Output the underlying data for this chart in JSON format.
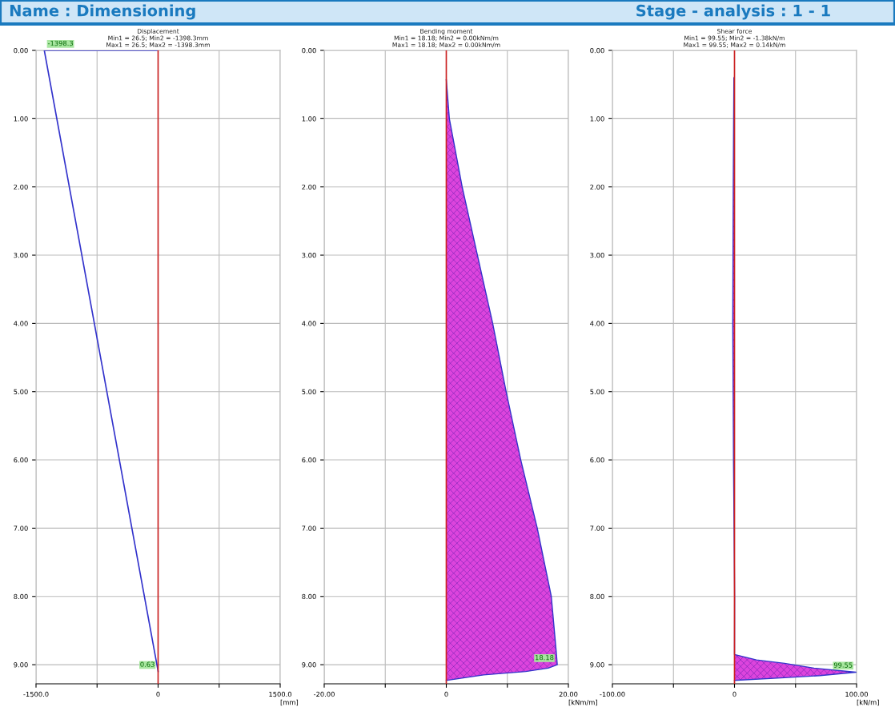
{
  "chart_data": [
    {
      "type": "line",
      "orientation": "horizontal",
      "title": "Displacement",
      "subtitle": "Min1 = 26.5; Min2 = -1398.3mm\nMax1 = 26.5; Max2 = -1398.3mm",
      "xlabel": "[mm]",
      "annotations": [
        "Name : Dimensioning"
      ],
      "series": [
        {
          "color": "#3333cc",
          "x": [
            0,
            0,
            9.1
          ],
          "values": [
            0,
            -1398.3,
            0.63
          ],
          "value_labels": [
            null,
            "-1398.3",
            "0.63"
          ]
        }
      ],
      "ref_lines": [
        {
          "axis": "x",
          "value": 0,
          "color": "#cc2222"
        }
      ],
      "xlim": [
        -1500,
        1500
      ],
      "xticks": [
        {
          "value": -1500,
          "label": "-1500.0"
        },
        {
          "value": -750,
          "label": null
        },
        {
          "value": 0,
          "label": "0"
        },
        {
          "value": 750,
          "label": null
        },
        {
          "value": 1500,
          "label": "1500.0"
        }
      ],
      "ylim": [
        9.28,
        0
      ],
      "yticks": [
        {
          "value": 0,
          "label": "0.00"
        },
        {
          "value": 1,
          "label": "1.00"
        },
        {
          "value": 2,
          "label": "2.00"
        },
        {
          "value": 3,
          "label": "3.00"
        },
        {
          "value": 4,
          "label": "4.00"
        },
        {
          "value": 5,
          "label": "5.00"
        },
        {
          "value": 6,
          "label": "6.00"
        },
        {
          "value": 7,
          "label": "7.00"
        },
        {
          "value": 8,
          "label": "8.00"
        },
        {
          "value": 9,
          "label": "9.00"
        }
      ],
      "grid": true
    },
    {
      "type": "area",
      "orientation": "horizontal",
      "title": "Bending moment",
      "subtitle": "Min1 = 18.18; Min2 = 0.00kNm/m\nMax1 = 18.18; Max2 = 0.00kNm/m",
      "xlabel": "[kNm/m]",
      "series": [
        {
          "color": "#dd44dd",
          "x": [
            0.43,
            1,
            2,
            3,
            4,
            5,
            6,
            7,
            8,
            8.8,
            9.0,
            9.05,
            9.1,
            9.15,
            9.23
          ],
          "values": [
            0,
            0.5,
            2.6,
            5.1,
            7.6,
            9.8,
            12.2,
            14.9,
            17.2,
            18.0,
            18.18,
            16.7,
            13.0,
            6.1,
            0
          ],
          "value_labels": [
            null,
            null,
            null,
            null,
            null,
            null,
            null,
            null,
            null,
            null,
            "18.18",
            null,
            null,
            null,
            null
          ]
        }
      ],
      "ref_lines": [
        {
          "axis": "x",
          "value": 0,
          "color": "#cc2222"
        }
      ],
      "xlim": [
        -20,
        20
      ],
      "xticks": [
        {
          "value": -20,
          "label": "-20.00"
        },
        {
          "value": -10,
          "label": null
        },
        {
          "value": 0,
          "label": "0"
        },
        {
          "value": 10,
          "label": null
        },
        {
          "value": 20,
          "label": "20.00"
        }
      ],
      "ylim": [
        9.28,
        0
      ],
      "yticks": [
        {
          "value": 0,
          "label": "0.00"
        },
        {
          "value": 1,
          "label": "1.00"
        },
        {
          "value": 2,
          "label": "2.00"
        },
        {
          "value": 3,
          "label": "3.00"
        },
        {
          "value": 4,
          "label": "4.00"
        },
        {
          "value": 5,
          "label": "5.00"
        },
        {
          "value": 6,
          "label": "6.00"
        },
        {
          "value": 7,
          "label": "7.00"
        },
        {
          "value": 8,
          "label": "8.00"
        },
        {
          "value": 9,
          "label": "9.00"
        }
      ],
      "grid": true
    },
    {
      "type": "area",
      "orientation": "horizontal",
      "title": "Shear force",
      "subtitle": "Min1 = 99.55; Min2 = -1.38kN/m\nMax1 = 99.55; Max2 = 0.14kN/m",
      "xlabel": "[kN/m]",
      "annotations": [
        "Stage - analysis : 1 - 1"
      ],
      "series": [
        {
          "color": "#dd44dd",
          "x": [
            0.4,
            2,
            4,
            6,
            8,
            8.85,
            8.93,
            8.98,
            9.05,
            9.11,
            9.16,
            9.19,
            9.23
          ],
          "values": [
            -0.5,
            -1,
            -1.4,
            -0.8,
            0.1,
            0,
            18,
            41,
            65,
            99.55,
            70,
            41,
            0
          ],
          "value_labels": [
            null,
            null,
            null,
            null,
            null,
            null,
            null,
            null,
            null,
            "99.55",
            null,
            null,
            null
          ]
        }
      ],
      "ref_lines": [
        {
          "axis": "x",
          "value": 0,
          "color": "#cc2222"
        }
      ],
      "xlim": [
        -100,
        100
      ],
      "xticks": [
        {
          "value": -100,
          "label": "-100.00"
        },
        {
          "value": -50,
          "label": null
        },
        {
          "value": 0,
          "label": "0"
        },
        {
          "value": 50,
          "label": null
        },
        {
          "value": 100,
          "label": "100.00"
        }
      ],
      "ylim": [
        9.28,
        0
      ],
      "yticks": [
        {
          "value": 0,
          "label": "0.00"
        },
        {
          "value": 1,
          "label": "1.00"
        },
        {
          "value": 2,
          "label": "2.00"
        },
        {
          "value": 3,
          "label": "3.00"
        },
        {
          "value": 4,
          "label": "4.00"
        },
        {
          "value": 5,
          "label": "5.00"
        },
        {
          "value": 6,
          "label": "6.00"
        },
        {
          "value": 7,
          "label": "7.00"
        },
        {
          "value": 8,
          "label": "8.00"
        },
        {
          "value": 9,
          "label": "9.00"
        }
      ],
      "grid": true
    }
  ]
}
